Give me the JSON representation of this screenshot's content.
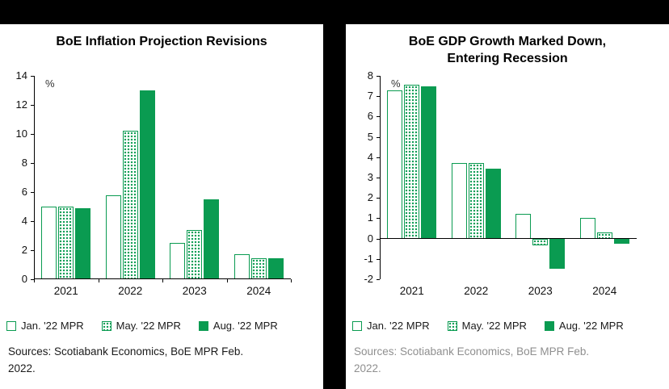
{
  "colors": {
    "green": "#0a9b51",
    "page_bg": "#000000",
    "panel_bg": "#ffffff",
    "sources_dark": "#1a1a1a",
    "sources_muted": "#8f8f8f"
  },
  "chart_data": [
    {
      "type": "bar",
      "title": "BoE Inflation Projection Revisions",
      "ylabel": "%",
      "ylim": [
        0,
        14
      ],
      "ytick_step": 2,
      "grid": false,
      "legend_position": "bottom",
      "categories": [
        "2021",
        "2022",
        "2023",
        "2024"
      ],
      "series": [
        {
          "name": "Jan. '22 MPR",
          "style": "outline",
          "values": [
            5.0,
            5.8,
            2.5,
            1.7
          ]
        },
        {
          "name": "May. '22 MPR",
          "style": "hatched",
          "values": [
            5.0,
            10.2,
            3.4,
            1.45
          ]
        },
        {
          "name": "Aug. '22 MPR",
          "style": "solid",
          "values": [
            4.9,
            13.0,
            5.5,
            1.45
          ]
        }
      ],
      "sources": "Sources: Scotiabank Economics, BoE MPR Feb.\n2022."
    },
    {
      "type": "bar",
      "title": "BoE GDP Growth Marked Down, Entering Recession",
      "title_lines": [
        "BoE GDP Growth Marked Down,",
        "Entering Recession"
      ],
      "ylabel": "%",
      "ylim": [
        -2,
        8
      ],
      "ytick_step": 1,
      "grid": false,
      "legend_position": "bottom",
      "categories": [
        "2021",
        "2022",
        "2023",
        "2024"
      ],
      "series": [
        {
          "name": "Jan. '22 MPR",
          "style": "outline",
          "values": [
            7.3,
            3.7,
            1.2,
            1.0
          ]
        },
        {
          "name": "May. '22 MPR",
          "style": "hatched",
          "values": [
            7.55,
            3.7,
            -0.35,
            0.3
          ]
        },
        {
          "name": "Aug. '22 MPR",
          "style": "solid",
          "values": [
            7.5,
            3.45,
            -1.5,
            -0.25
          ]
        }
      ],
      "sources": "Sources: Scotiabank Economics, BoE MPR Feb.\n2022."
    }
  ]
}
